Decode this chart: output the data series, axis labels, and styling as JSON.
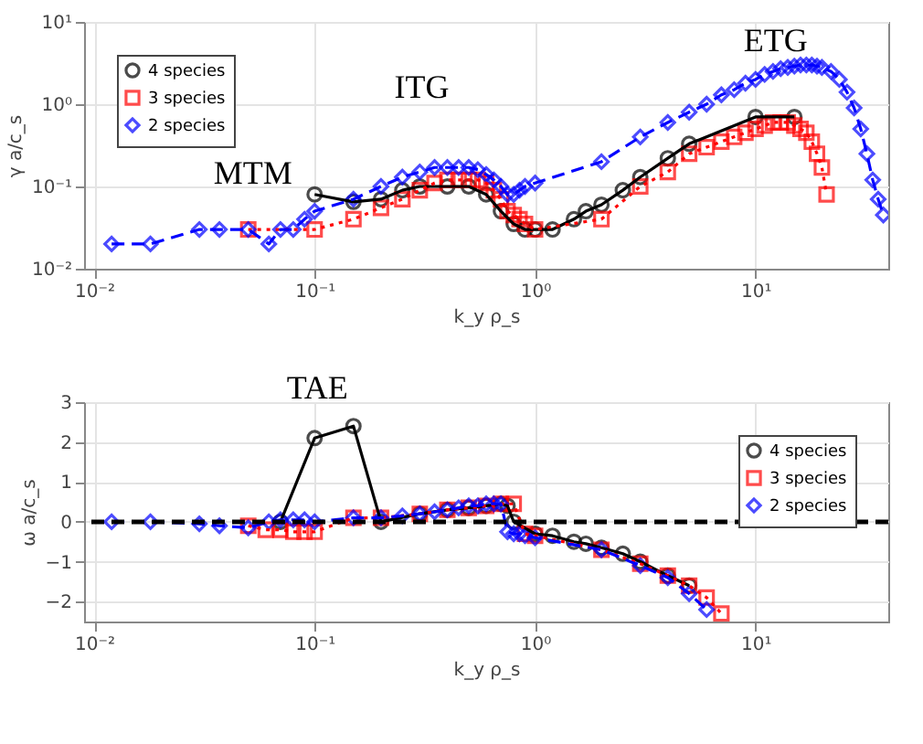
{
  "chart_data": [
    {
      "type": "line",
      "xlabel": "k_y ρ_s",
      "ylabel": "γ a/c_s",
      "log": "xy",
      "grid": true,
      "legend": "top left",
      "xlim": [
        0.009,
        40
      ],
      "xticks": [
        {
          "value": 0.01,
          "label": "10⁻²"
        },
        {
          "value": 0.1,
          "label": "10⁻¹"
        },
        {
          "value": 1,
          "label": "10⁰"
        },
        {
          "value": 10,
          "label": "10¹"
        }
      ],
      "ylim": [
        0.01,
        10
      ],
      "yticks": [
        {
          "value": 0.01,
          "label": "10⁻²"
        },
        {
          "value": 0.1,
          "label": "10⁻¹"
        },
        {
          "value": 1,
          "label": "10⁰"
        },
        {
          "value": 10,
          "label": "10¹"
        }
      ],
      "annotations": [
        "MTM",
        "ITG",
        "ETG"
      ],
      "series": [
        {
          "name": "4 species",
          "color": "#000000",
          "marker": "circle",
          "line_style": "solid",
          "x": [
            0.1,
            0.15,
            0.2,
            0.25,
            0.3,
            0.4,
            0.5,
            0.6,
            0.7,
            0.8,
            0.9,
            1.0,
            1.2,
            1.5,
            1.7,
            2,
            2.5,
            3,
            4,
            5,
            10,
            15
          ],
          "values": [
            0.08,
            0.065,
            0.07,
            0.09,
            0.1,
            0.1,
            0.1,
            0.08,
            0.05,
            0.035,
            0.03,
            0.03,
            0.03,
            0.04,
            0.05,
            0.06,
            0.09,
            0.13,
            0.22,
            0.33,
            0.7,
            0.7
          ]
        },
        {
          "name": "3 species",
          "color": "#ff0000",
          "marker": "square",
          "line_style": "dotted",
          "x": [
            0.05,
            0.1,
            0.15,
            0.2,
            0.25,
            0.3,
            0.35,
            0.4,
            0.45,
            0.5,
            0.55,
            0.6,
            0.65,
            0.7,
            0.75,
            0.8,
            0.85,
            0.9,
            1.0,
            2,
            3,
            4,
            5,
            6,
            7,
            8,
            9,
            10,
            11,
            12,
            13,
            14,
            15,
            16,
            17,
            18,
            19,
            20,
            21
          ],
          "values": [
            0.03,
            0.03,
            0.04,
            0.055,
            0.07,
            0.09,
            0.11,
            0.12,
            0.12,
            0.12,
            0.12,
            0.11,
            0.09,
            0.07,
            0.05,
            0.045,
            0.04,
            0.035,
            0.03,
            0.04,
            0.1,
            0.15,
            0.25,
            0.3,
            0.35,
            0.4,
            0.45,
            0.5,
            0.55,
            0.6,
            0.6,
            0.6,
            0.55,
            0.5,
            0.45,
            0.35,
            0.25,
            0.17,
            0.08
          ]
        },
        {
          "name": "2 species",
          "color": "#0000ff",
          "marker": "diamond",
          "line_style": "dashed",
          "x": [
            0.012,
            0.018,
            0.03,
            0.037,
            0.05,
            0.062,
            0.07,
            0.08,
            0.09,
            0.1,
            0.15,
            0.2,
            0.25,
            0.3,
            0.35,
            0.4,
            0.45,
            0.5,
            0.55,
            0.6,
            0.65,
            0.7,
            0.75,
            0.8,
            0.85,
            0.9,
            1.0,
            2,
            3,
            4,
            5,
            6,
            7,
            8,
            9,
            10,
            11,
            12,
            13,
            14,
            15,
            16,
            17,
            18,
            19,
            20,
            22,
            24,
            26,
            28,
            30,
            32,
            34,
            36,
            38
          ],
          "values": [
            0.02,
            0.02,
            0.03,
            0.03,
            0.03,
            0.02,
            0.03,
            0.03,
            0.04,
            0.05,
            0.07,
            0.1,
            0.13,
            0.15,
            0.17,
            0.17,
            0.17,
            0.17,
            0.16,
            0.14,
            0.12,
            0.1,
            0.08,
            0.08,
            0.09,
            0.1,
            0.11,
            0.2,
            0.4,
            0.6,
            0.8,
            1.0,
            1.3,
            1.5,
            1.8,
            2.0,
            2.3,
            2.5,
            2.7,
            2.8,
            2.9,
            3.0,
            3.0,
            3.0,
            2.9,
            2.8,
            2.5,
            2.0,
            1.4,
            0.9,
            0.5,
            0.25,
            0.12,
            0.07,
            0.045
          ]
        }
      ]
    },
    {
      "type": "line",
      "xlabel": "k_y ρ_s",
      "ylabel": "ω a/c_s",
      "log": "x",
      "grid": true,
      "legend": "top right",
      "xlim": [
        0.009,
        40
      ],
      "xticks": [
        {
          "value": 0.01,
          "label": "10⁻²"
        },
        {
          "value": 0.1,
          "label": "10⁻¹"
        },
        {
          "value": 1,
          "label": "10⁰"
        },
        {
          "value": 10,
          "label": "10¹"
        }
      ],
      "ylim": [
        -2.5,
        3
      ],
      "yticks": [
        -2,
        -1,
        0,
        1,
        2,
        3
      ],
      "ref_lines": [
        {
          "axis": "y",
          "value": 0,
          "color": "#000000",
          "line_style": "dashed"
        }
      ],
      "annotations": [
        "TAE"
      ],
      "series": [
        {
          "name": "4 species",
          "color": "#000000",
          "marker": "circle",
          "line_style": "solid",
          "x": [
            0.07,
            0.1,
            0.15,
            0.2,
            0.3,
            0.4,
            0.5,
            0.6,
            0.7,
            0.75,
            0.8,
            1.0,
            1.2,
            1.5,
            1.7,
            2,
            2.5,
            3,
            4,
            5
          ],
          "values": [
            0,
            2.1,
            2.4,
            0,
            0.2,
            0.3,
            0.35,
            0.4,
            0.45,
            0.4,
            0,
            -0.3,
            -0.35,
            -0.5,
            -0.55,
            -0.65,
            -0.8,
            -1.0,
            -1.35,
            -1.6
          ]
        },
        {
          "name": "3 species",
          "color": "#ff0000",
          "marker": "square",
          "line_style": "dotted",
          "x": [
            0.05,
            0.06,
            0.07,
            0.08,
            0.09,
            0.1,
            0.15,
            0.2,
            0.3,
            0.4,
            0.5,
            0.6,
            0.7,
            0.8,
            0.9,
            1.0,
            2,
            3,
            4,
            5,
            6,
            7
          ],
          "values": [
            -0.1,
            -0.2,
            -0.2,
            -0.25,
            -0.25,
            -0.25,
            0.1,
            0.1,
            0.2,
            0.3,
            0.35,
            0.4,
            0.45,
            0.45,
            -0.3,
            -0.35,
            -0.7,
            -1.05,
            -1.35,
            -1.6,
            -1.9,
            -2.3
          ]
        },
        {
          "name": "2 species",
          "color": "#0000ff",
          "marker": "diamond",
          "line_style": "dashed",
          "x": [
            0.012,
            0.018,
            0.03,
            0.037,
            0.05,
            0.062,
            0.07,
            0.08,
            0.09,
            0.1,
            0.15,
            0.2,
            0.25,
            0.3,
            0.35,
            0.4,
            0.45,
            0.5,
            0.55,
            0.6,
            0.65,
            0.7,
            0.75,
            0.8,
            0.85,
            0.9,
            1.0,
            2,
            3,
            4,
            5,
            6
          ],
          "values": [
            0,
            0,
            -0.05,
            -0.1,
            -0.15,
            0,
            0.05,
            0.05,
            0.05,
            0,
            0.1,
            0.1,
            0.15,
            0.2,
            0.25,
            0.3,
            0.35,
            0.4,
            0.4,
            0.45,
            0.45,
            0.45,
            -0.25,
            -0.3,
            -0.3,
            -0.35,
            -0.4,
            -0.7,
            -1.1,
            -1.4,
            -1.8,
            -2.2
          ]
        }
      ]
    }
  ]
}
